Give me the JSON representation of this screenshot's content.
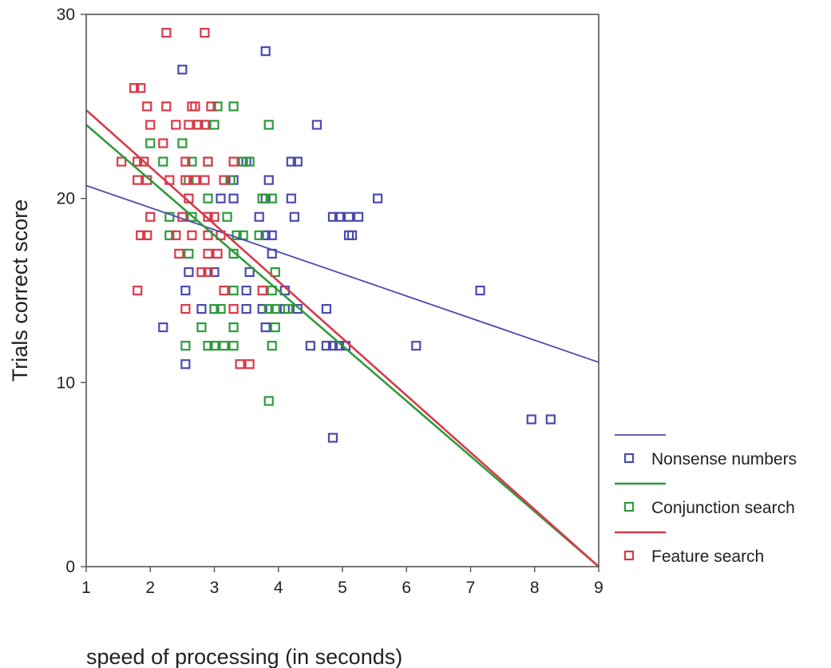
{
  "chart_data": {
    "type": "scatter",
    "title": "",
    "xlabel": "speed of processing (in seconds)",
    "ylabel": "Trials correct score",
    "xlim": [
      1,
      9
    ],
    "ylim": [
      0,
      30
    ],
    "x_ticks": [
      "1",
      "2",
      "3",
      "4",
      "5",
      "6",
      "7",
      "8",
      "9"
    ],
    "y_ticks": [
      "0",
      "10",
      "20",
      "30"
    ],
    "grid": false,
    "legend_position": "right",
    "series": [
      {
        "name": "Nonsense numbers",
        "color": "#4a4ab0",
        "marker": "hollow-square",
        "fit_line": {
          "x": [
            1,
            9
          ],
          "y": [
            20.7,
            11.1
          ]
        },
        "points": [
          [
            3.8,
            28
          ],
          [
            2.5,
            27
          ],
          [
            4.6,
            24
          ],
          [
            4.2,
            22
          ],
          [
            4.3,
            22
          ],
          [
            3.5,
            22
          ],
          [
            3.3,
            21
          ],
          [
            3.85,
            21
          ],
          [
            3.1,
            20
          ],
          [
            3.3,
            20
          ],
          [
            3.8,
            20
          ],
          [
            4.2,
            20
          ],
          [
            5.55,
            20
          ],
          [
            3.7,
            19
          ],
          [
            4.25,
            19
          ],
          [
            4.85,
            19
          ],
          [
            4.95,
            19
          ],
          [
            5.1,
            19
          ],
          [
            5.25,
            19
          ],
          [
            3.8,
            18
          ],
          [
            3.9,
            18
          ],
          [
            5.1,
            18
          ],
          [
            5.15,
            18
          ],
          [
            3.9,
            17
          ],
          [
            2.6,
            16
          ],
          [
            3.0,
            16
          ],
          [
            3.55,
            16
          ],
          [
            2.55,
            15
          ],
          [
            3.5,
            15
          ],
          [
            4.1,
            15
          ],
          [
            7.15,
            15
          ],
          [
            2.8,
            14
          ],
          [
            3.0,
            14
          ],
          [
            3.5,
            14
          ],
          [
            3.75,
            14
          ],
          [
            4.1,
            14
          ],
          [
            4.3,
            14
          ],
          [
            4.75,
            14
          ],
          [
            2.2,
            13
          ],
          [
            3.8,
            13
          ],
          [
            4.5,
            12
          ],
          [
            4.75,
            12
          ],
          [
            4.85,
            12
          ],
          [
            4.95,
            12
          ],
          [
            5.05,
            12
          ],
          [
            6.15,
            12
          ],
          [
            2.55,
            11
          ],
          [
            7.95,
            8
          ],
          [
            8.25,
            8
          ],
          [
            4.85,
            7
          ]
        ]
      },
      {
        "name": "Conjunction search",
        "color": "#2e9a3c",
        "marker": "hollow-square",
        "fit_line": {
          "x": [
            1,
            9
          ],
          "y": [
            24.0,
            0
          ]
        },
        "points": [
          [
            3.05,
            25
          ],
          [
            3.3,
            25
          ],
          [
            2.75,
            24
          ],
          [
            3.0,
            24
          ],
          [
            3.85,
            24
          ],
          [
            2.0,
            23
          ],
          [
            2.5,
            23
          ],
          [
            2.2,
            22
          ],
          [
            2.65,
            22
          ],
          [
            2.9,
            22
          ],
          [
            3.45,
            22
          ],
          [
            3.55,
            22
          ],
          [
            2.6,
            21
          ],
          [
            3.25,
            21
          ],
          [
            2.9,
            20
          ],
          [
            3.75,
            20
          ],
          [
            3.9,
            20
          ],
          [
            2.3,
            19
          ],
          [
            2.65,
            19
          ],
          [
            3.2,
            19
          ],
          [
            2.3,
            18
          ],
          [
            3.35,
            18
          ],
          [
            3.45,
            18
          ],
          [
            3.7,
            18
          ],
          [
            2.6,
            17
          ],
          [
            3.3,
            17
          ],
          [
            3.95,
            16
          ],
          [
            3.3,
            15
          ],
          [
            3.9,
            15
          ],
          [
            3.0,
            14
          ],
          [
            3.1,
            14
          ],
          [
            3.85,
            14
          ],
          [
            3.95,
            14
          ],
          [
            4.15,
            14
          ],
          [
            2.8,
            13
          ],
          [
            3.3,
            13
          ],
          [
            3.95,
            13
          ],
          [
            2.55,
            12
          ],
          [
            2.9,
            12
          ],
          [
            3.0,
            12
          ],
          [
            3.15,
            12
          ],
          [
            3.3,
            12
          ],
          [
            3.9,
            12
          ],
          [
            3.85,
            9
          ]
        ]
      },
      {
        "name": "Feature search",
        "color": "#d83a4a",
        "marker": "hollow-square",
        "fit_line": {
          "x": [
            1,
            9
          ],
          "y": [
            24.8,
            0
          ]
        },
        "points": [
          [
            2.25,
            29
          ],
          [
            2.85,
            29
          ],
          [
            1.75,
            26
          ],
          [
            1.85,
            26
          ],
          [
            1.95,
            25
          ],
          [
            2.25,
            25
          ],
          [
            2.65,
            25
          ],
          [
            2.7,
            25
          ],
          [
            2.95,
            25
          ],
          [
            2.0,
            24
          ],
          [
            2.4,
            24
          ],
          [
            2.6,
            24
          ],
          [
            2.75,
            24
          ],
          [
            2.85,
            24
          ],
          [
            2.2,
            23
          ],
          [
            1.55,
            22
          ],
          [
            1.8,
            22
          ],
          [
            1.9,
            22
          ],
          [
            2.55,
            22
          ],
          [
            2.9,
            22
          ],
          [
            3.3,
            22
          ],
          [
            1.8,
            21
          ],
          [
            1.95,
            21
          ],
          [
            2.3,
            21
          ],
          [
            2.55,
            21
          ],
          [
            2.7,
            21
          ],
          [
            2.85,
            21
          ],
          [
            3.15,
            21
          ],
          [
            2.6,
            20
          ],
          [
            2.0,
            19
          ],
          [
            2.5,
            19
          ],
          [
            2.9,
            19
          ],
          [
            3.0,
            19
          ],
          [
            1.85,
            18
          ],
          [
            1.95,
            18
          ],
          [
            2.4,
            18
          ],
          [
            2.65,
            18
          ],
          [
            2.9,
            18
          ],
          [
            3.1,
            18
          ],
          [
            2.45,
            17
          ],
          [
            2.9,
            17
          ],
          [
            3.05,
            17
          ],
          [
            2.8,
            16
          ],
          [
            2.9,
            16
          ],
          [
            1.8,
            15
          ],
          [
            3.15,
            15
          ],
          [
            3.75,
            15
          ],
          [
            2.55,
            14
          ],
          [
            3.3,
            14
          ],
          [
            3.4,
            11
          ],
          [
            3.55,
            11
          ]
        ]
      }
    ]
  }
}
